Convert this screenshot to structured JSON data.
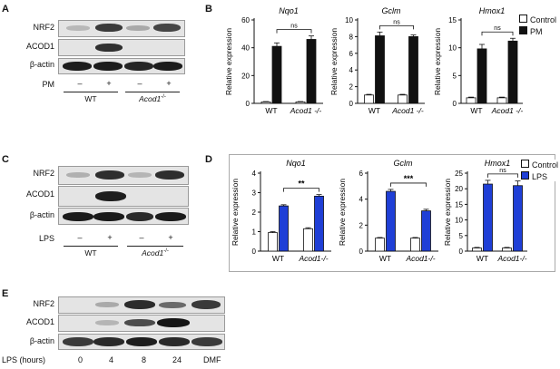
{
  "panels": {
    "A": {
      "letter": "A",
      "rows": [
        "NRF2",
        "ACOD1",
        "β-actin"
      ],
      "treatment_label": "PM",
      "lanes": [
        "–",
        "+",
        "–",
        "+"
      ],
      "groups": [
        {
          "label": "WT",
          "italic": false,
          "sup": ""
        },
        {
          "label": "Acod1",
          "italic": true,
          "sup": "-/-"
        }
      ]
    },
    "B": {
      "letter": "B",
      "legend": [
        {
          "label": "Control",
          "color": "#ffffff"
        },
        {
          "label": "PM",
          "color": "#111111"
        }
      ]
    },
    "C": {
      "letter": "C",
      "rows": [
        "NRF2",
        "ACOD1",
        "β-actin"
      ],
      "treatment_label": "LPS",
      "lanes": [
        "–",
        "+",
        "–",
        "+"
      ],
      "groups": [
        {
          "label": "WT",
          "italic": false,
          "sup": ""
        },
        {
          "label": "Acod1",
          "italic": true,
          "sup": "-/-"
        }
      ]
    },
    "D": {
      "letter": "D",
      "legend": [
        {
          "label": "Control",
          "color": "#ffffff"
        },
        {
          "label": "LPS",
          "color": "#1f3fd6"
        }
      ]
    },
    "E": {
      "letter": "E",
      "rows": [
        "NRF2",
        "ACOD1",
        "β-actin"
      ],
      "treatment_label": "LPS (hours)",
      "lanes": [
        "0",
        "4",
        "8",
        "24",
        "DMF"
      ]
    }
  },
  "chart_data": [
    {
      "panel": "B",
      "type": "bar",
      "title": "Nqo1",
      "ylabel": "Relative expression",
      "categories": [
        "WT",
        "Acod1 -/-"
      ],
      "ylim": [
        0,
        60
      ],
      "yticks": [
        0,
        20,
        40,
        60
      ],
      "series": [
        {
          "name": "Control",
          "values": [
            1,
            1
          ],
          "errors": [
            0.3,
            0.3
          ],
          "color": "#ffffff"
        },
        {
          "name": "PM",
          "values": [
            41,
            46
          ],
          "errors": [
            2.5,
            2.5
          ],
          "color": "#111111"
        }
      ],
      "significance": "ns"
    },
    {
      "panel": "B",
      "type": "bar",
      "title": "Gclm",
      "ylabel": "Relative expression",
      "categories": [
        "WT",
        "Acod1 -/-"
      ],
      "ylim": [
        0,
        10
      ],
      "yticks": [
        0,
        2,
        4,
        6,
        8,
        10
      ],
      "series": [
        {
          "name": "Control",
          "values": [
            1,
            1
          ],
          "errors": [
            0.08,
            0.08
          ],
          "color": "#ffffff"
        },
        {
          "name": "PM",
          "values": [
            8.1,
            8.0
          ],
          "errors": [
            0.45,
            0.2
          ],
          "color": "#111111"
        }
      ],
      "significance": "ns"
    },
    {
      "panel": "B",
      "type": "bar",
      "title": "Hmox1",
      "ylabel": "Relative expression",
      "categories": [
        "WT",
        "Acod1 -/-"
      ],
      "ylim": [
        0,
        15
      ],
      "yticks": [
        0,
        5,
        10,
        15
      ],
      "series": [
        {
          "name": "Control",
          "values": [
            1,
            1
          ],
          "errors": [
            0.12,
            0.12
          ],
          "color": "#ffffff"
        },
        {
          "name": "PM",
          "values": [
            9.8,
            11.2
          ],
          "errors": [
            0.8,
            0.5
          ],
          "color": "#111111"
        }
      ],
      "significance": "ns"
    },
    {
      "panel": "D",
      "type": "bar",
      "title": "Nqo1",
      "ylabel": "Relative expression",
      "categories": [
        "WT",
        "Acod1-/-"
      ],
      "ylim": [
        0,
        4
      ],
      "yticks": [
        0,
        1,
        2,
        3,
        4
      ],
      "series": [
        {
          "name": "Control",
          "values": [
            0.95,
            1.15
          ],
          "errors": [
            0.05,
            0.05
          ],
          "color": "#ffffff"
        },
        {
          "name": "LPS",
          "values": [
            2.32,
            2.82
          ],
          "errors": [
            0.06,
            0.08
          ],
          "color": "#1f3fd6"
        }
      ],
      "significance": "**"
    },
    {
      "panel": "D",
      "type": "bar",
      "title": "Gclm",
      "ylabel": "Relative expression",
      "categories": [
        "WT",
        "Acod1-/-"
      ],
      "ylim": [
        0,
        6
      ],
      "yticks": [
        0,
        2,
        4,
        6
      ],
      "series": [
        {
          "name": "Control",
          "values": [
            1.0,
            1.0
          ],
          "errors": [
            0.05,
            0.05
          ],
          "color": "#ffffff"
        },
        {
          "name": "LPS",
          "values": [
            4.6,
            3.1
          ],
          "errors": [
            0.15,
            0.12
          ],
          "color": "#1f3fd6"
        }
      ],
      "significance": "***"
    },
    {
      "panel": "D",
      "type": "bar",
      "title": "Hmox1",
      "ylabel": "Relative expression",
      "categories": [
        "WT",
        "Acod1-/-"
      ],
      "ylim": [
        0,
        25
      ],
      "yticks": [
        0,
        5,
        10,
        15,
        20,
        25
      ],
      "series": [
        {
          "name": "Control",
          "values": [
            1,
            1
          ],
          "errors": [
            0.2,
            0.2
          ],
          "color": "#ffffff"
        },
        {
          "name": "LPS",
          "values": [
            21.5,
            21.0
          ],
          "errors": [
            1.2,
            1.5
          ],
          "color": "#1f3fd6"
        }
      ],
      "significance": "ns"
    }
  ]
}
